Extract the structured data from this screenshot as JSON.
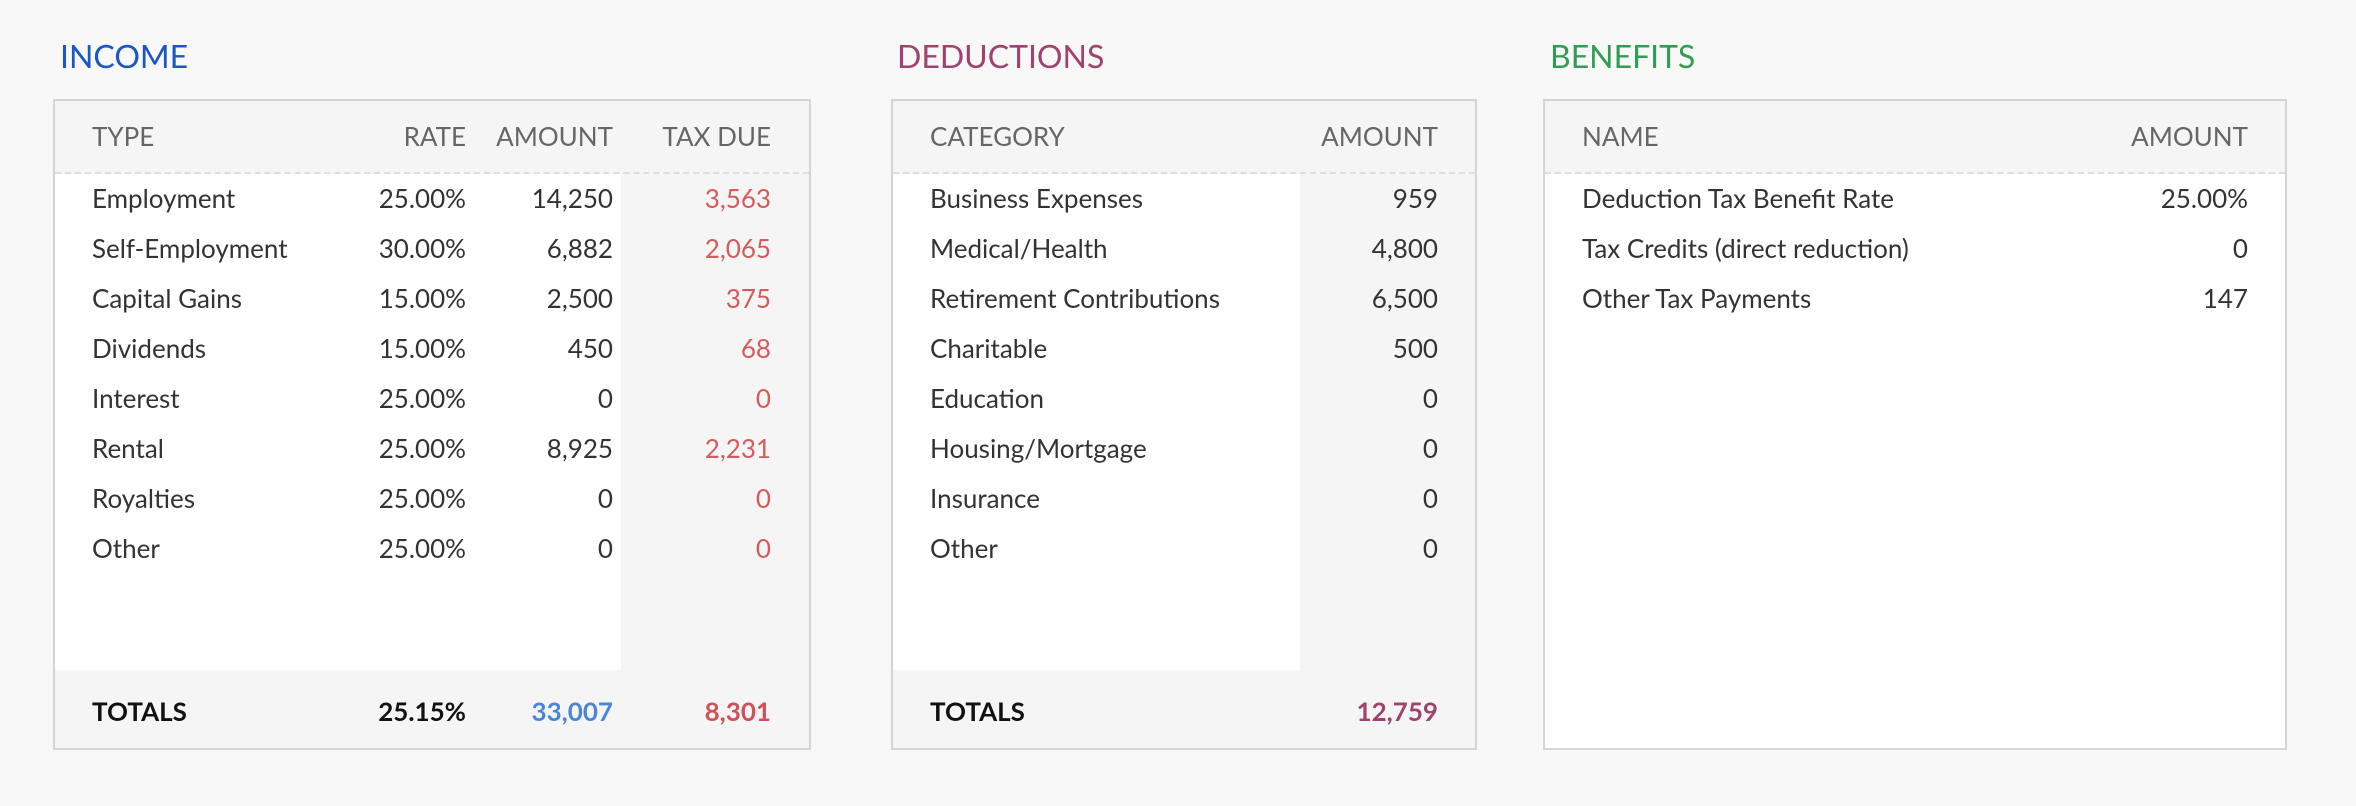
{
  "income": {
    "title": "INCOME",
    "columns": [
      "TYPE",
      "RATE",
      "AMOUNT",
      "TAX DUE"
    ],
    "rows": [
      [
        "Employment",
        "25.00%",
        "14,250",
        "3,563"
      ],
      [
        "Self-Employment",
        "30.00%",
        "6,882",
        "2,065"
      ],
      [
        "Capital Gains",
        "15.00%",
        "2,500",
        "375"
      ],
      [
        "Dividends",
        "15.00%",
        "450",
        "68"
      ],
      [
        "Interest",
        "25.00%",
        "0",
        "0"
      ],
      [
        "Rental",
        "25.00%",
        "8,925",
        "2,231"
      ],
      [
        "Royalties",
        "25.00%",
        "0",
        "0"
      ],
      [
        "Other",
        "25.00%",
        "0",
        "0"
      ]
    ],
    "totals": [
      "TOTALS",
      "25.15%",
      "33,007",
      "8,301"
    ]
  },
  "deductions": {
    "title": "DEDUCTIONS",
    "columns": [
      "CATEGORY",
      "AMOUNT"
    ],
    "rows": [
      [
        "Business Expenses",
        "959"
      ],
      [
        "Medical/Health",
        "4,800"
      ],
      [
        "Retirement Contributions",
        "6,500"
      ],
      [
        "Charitable",
        "500"
      ],
      [
        "Education",
        "0"
      ],
      [
        "Housing/Mortgage",
        "0"
      ],
      [
        "Insurance",
        "0"
      ],
      [
        "Other",
        "0"
      ]
    ],
    "totals": [
      "TOTALS",
      "12,759"
    ]
  },
  "benefits": {
    "title": "BENEFITS",
    "columns": [
      "NAME",
      "AMOUNT"
    ],
    "rows": [
      [
        "Deduction Tax Benefit Rate",
        "25.00%"
      ],
      [
        "Tax Credits (direct reduction)",
        "0"
      ],
      [
        "Other Tax Payments",
        "147"
      ]
    ]
  }
}
